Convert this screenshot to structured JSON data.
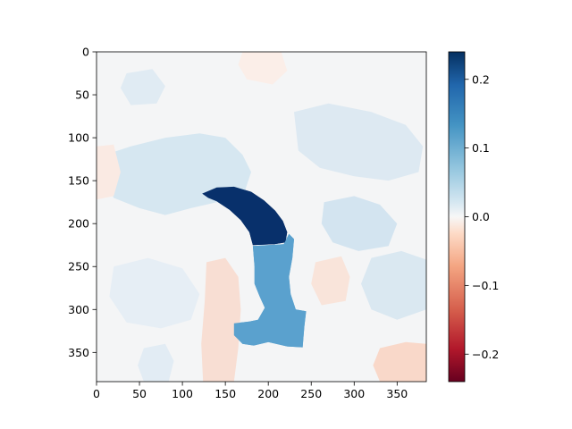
{
  "chart_data": {
    "type": "heatmap",
    "title": "",
    "xlabel": "",
    "ylabel": "",
    "xlim": [
      0,
      384
    ],
    "ylim": [
      384,
      0
    ],
    "y_axis_inverted": true,
    "x_ticks": [
      0,
      50,
      100,
      150,
      200,
      250,
      300,
      350
    ],
    "y_ticks": [
      0,
      50,
      100,
      150,
      200,
      250,
      300,
      350
    ],
    "x_tick_labels": [
      "0",
      "50",
      "100",
      "150",
      "200",
      "250",
      "300",
      "350"
    ],
    "y_tick_labels": [
      "0",
      "50",
      "100",
      "150",
      "200",
      "250",
      "300",
      "350"
    ],
    "colormap": "RdBu",
    "colorbar": {
      "vmin": -0.24,
      "vmax": 0.24,
      "ticks": [
        -0.2,
        -0.1,
        0.0,
        0.1,
        0.2
      ],
      "tick_labels": [
        "−0.2",
        "−0.1",
        "0.0",
        "0.1",
        "0.2"
      ]
    },
    "background_value": 0.005,
    "regions": [
      {
        "name": "arc",
        "value": 0.24,
        "color": "#08306b",
        "points": [
          [
            123,
            165
          ],
          [
            140,
            158
          ],
          [
            160,
            157
          ],
          [
            180,
            163
          ],
          [
            195,
            173
          ],
          [
            208,
            185
          ],
          [
            217,
            197
          ],
          [
            222,
            210
          ],
          [
            220,
            222
          ],
          [
            207,
            224
          ],
          [
            182,
            225
          ],
          [
            178,
            210
          ],
          [
            168,
            196
          ],
          [
            155,
            184
          ],
          [
            140,
            174
          ],
          [
            130,
            170
          ]
        ]
      },
      {
        "name": "stem",
        "value": 0.12,
        "color": "#5aa1ce",
        "points": [
          [
            182,
            226
          ],
          [
            218,
            224
          ],
          [
            224,
            212
          ],
          [
            230,
            218
          ],
          [
            228,
            240
          ],
          [
            224,
            262
          ],
          [
            226,
            282
          ],
          [
            232,
            300
          ],
          [
            244,
            302
          ],
          [
            242,
            320
          ],
          [
            240,
            344
          ],
          [
            222,
            343
          ],
          [
            200,
            338
          ],
          [
            183,
            342
          ],
          [
            170,
            340
          ],
          [
            160,
            330
          ],
          [
            160,
            316
          ],
          [
            178,
            314
          ],
          [
            188,
            312
          ],
          [
            196,
            298
          ],
          [
            190,
            285
          ],
          [
            184,
            270
          ],
          [
            184,
            250
          ]
        ]
      },
      {
        "name": "left-blob",
        "value": 0.04,
        "color": "#d6e7f1",
        "points": [
          [
            10,
            120
          ],
          [
            40,
            110
          ],
          [
            80,
            100
          ],
          [
            120,
            95
          ],
          [
            150,
            100
          ],
          [
            170,
            120
          ],
          [
            180,
            140
          ],
          [
            170,
            170
          ],
          [
            140,
            175
          ],
          [
            110,
            182
          ],
          [
            80,
            190
          ],
          [
            50,
            182
          ],
          [
            20,
            170
          ],
          [
            10,
            150
          ]
        ]
      },
      {
        "name": "upper-right-blob",
        "value": 0.03,
        "color": "#dde9f2",
        "points": [
          [
            230,
            70
          ],
          [
            270,
            60
          ],
          [
            320,
            70
          ],
          [
            360,
            85
          ],
          [
            380,
            110
          ],
          [
            375,
            140
          ],
          [
            340,
            150
          ],
          [
            300,
            145
          ],
          [
            260,
            135
          ],
          [
            235,
            115
          ]
        ]
      },
      {
        "name": "right-mid-blob",
        "value": 0.045,
        "color": "#d3e4f0",
        "points": [
          [
            265,
            175
          ],
          [
            300,
            168
          ],
          [
            330,
            178
          ],
          [
            350,
            200
          ],
          [
            340,
            226
          ],
          [
            305,
            232
          ],
          [
            275,
            222
          ],
          [
            262,
            200
          ]
        ]
      },
      {
        "name": "bottom-left-blob",
        "value": 0.02,
        "color": "#e6eef5",
        "points": [
          [
            20,
            250
          ],
          [
            60,
            240
          ],
          [
            100,
            252
          ],
          [
            120,
            282
          ],
          [
            110,
            312
          ],
          [
            75,
            322
          ],
          [
            35,
            315
          ],
          [
            15,
            285
          ]
        ]
      },
      {
        "name": "lower-right-blob",
        "value": 0.035,
        "color": "#dae8f1",
        "points": [
          [
            320,
            240
          ],
          [
            355,
            232
          ],
          [
            384,
            242
          ],
          [
            384,
            300
          ],
          [
            350,
            312
          ],
          [
            320,
            300
          ],
          [
            308,
            270
          ]
        ]
      },
      {
        "name": "center-red-stripe",
        "value": -0.025,
        "color": "#f8ded3",
        "points": [
          [
            128,
            245
          ],
          [
            150,
            240
          ],
          [
            165,
            262
          ],
          [
            168,
            300
          ],
          [
            165,
            345
          ],
          [
            160,
            384
          ],
          [
            124,
            384
          ],
          [
            122,
            340
          ],
          [
            126,
            290
          ]
        ]
      },
      {
        "name": "bottom-right-red",
        "value": -0.03,
        "color": "#f9d8c9",
        "points": [
          [
            330,
            345
          ],
          [
            360,
            338
          ],
          [
            384,
            340
          ],
          [
            384,
            384
          ],
          [
            330,
            384
          ],
          [
            322,
            365
          ]
        ]
      },
      {
        "name": "upper-left-red",
        "value": -0.02,
        "color": "#faeae3",
        "points": [
          [
            0,
            110
          ],
          [
            20,
            108
          ],
          [
            28,
            140
          ],
          [
            20,
            168
          ],
          [
            0,
            172
          ]
        ]
      },
      {
        "name": "right-red",
        "value": -0.02,
        "color": "#f9e4da",
        "points": [
          [
            255,
            245
          ],
          [
            285,
            238
          ],
          [
            295,
            262
          ],
          [
            290,
            290
          ],
          [
            262,
            295
          ],
          [
            250,
            270
          ]
        ]
      },
      {
        "name": "top-red",
        "value": -0.015,
        "color": "#fbeee8",
        "points": [
          [
            170,
            0
          ],
          [
            215,
            0
          ],
          [
            222,
            22
          ],
          [
            205,
            38
          ],
          [
            175,
            32
          ],
          [
            165,
            15
          ]
        ]
      },
      {
        "name": "left-bottom-blue",
        "value": 0.025,
        "color": "#e2ecf4",
        "points": [
          [
            55,
            345
          ],
          [
            80,
            340
          ],
          [
            90,
            360
          ],
          [
            84,
            384
          ],
          [
            55,
            384
          ],
          [
            48,
            365
          ]
        ]
      },
      {
        "name": "top-left-blue",
        "value": 0.03,
        "color": "#e0ebf3",
        "points": [
          [
            35,
            25
          ],
          [
            65,
            20
          ],
          [
            80,
            40
          ],
          [
            70,
            60
          ],
          [
            40,
            62
          ],
          [
            28,
            42
          ]
        ]
      }
    ]
  }
}
